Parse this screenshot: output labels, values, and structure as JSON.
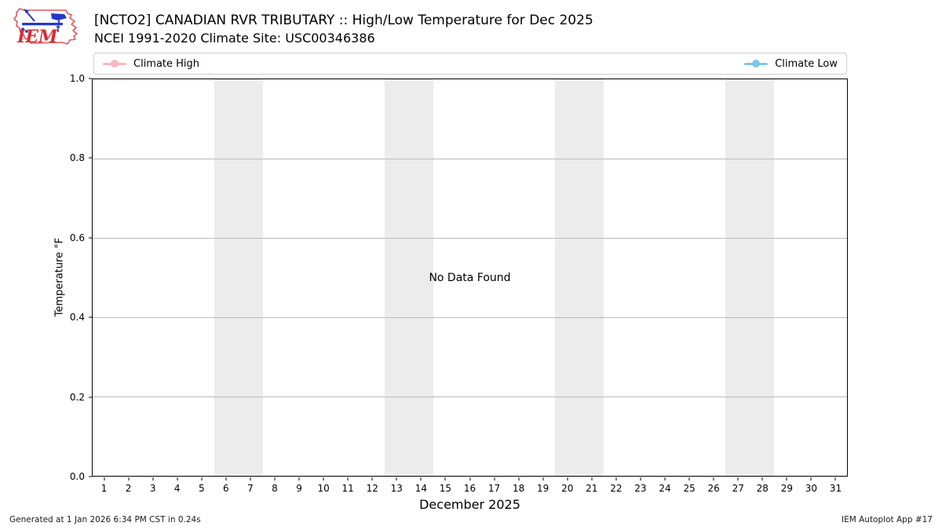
{
  "header": {
    "title": "[NCTO2] CANADIAN RVR TRIBUTARY :: High/Low Temperature for Dec 2025",
    "subtitle": "NCEI 1991-2020 Climate Site: USC00346386",
    "logo_text": "IEM"
  },
  "legend": {
    "items": [
      {
        "label": "Climate High",
        "color": "#f8b5c2",
        "marker": "circle-on-line"
      },
      {
        "label": "Climate Low",
        "color": "#7fc7e6",
        "marker": "circle-on-line"
      }
    ]
  },
  "chart_data": {
    "type": "line",
    "title": "[NCTO2] CANADIAN RVR TRIBUTARY :: High/Low Temperature for Dec 2025",
    "subtitle": "NCEI 1991-2020 Climate Site: USC00346386",
    "xlabel": "December 2025",
    "ylabel": "Temperature °F",
    "no_data_text": "No Data Found",
    "xlim": [
      0.5,
      31.5
    ],
    "ylim": [
      0.0,
      1.0
    ],
    "xticks": [
      1,
      2,
      3,
      4,
      5,
      6,
      7,
      8,
      9,
      10,
      11,
      12,
      13,
      14,
      15,
      16,
      17,
      18,
      19,
      20,
      21,
      22,
      23,
      24,
      25,
      26,
      27,
      28,
      29,
      30,
      31
    ],
    "yticks": [
      0.0,
      0.2,
      0.4,
      0.6,
      0.8,
      1.0
    ],
    "ytick_labels": [
      "0.0",
      "0.2",
      "0.4",
      "0.6",
      "0.8",
      "1.0"
    ],
    "series": [
      {
        "name": "Climate High",
        "color": "#f8b5c2",
        "x": [],
        "values": []
      },
      {
        "name": "Climate Low",
        "color": "#7fc7e6",
        "x": [],
        "values": []
      }
    ],
    "weekend_bands": [
      [
        5.5,
        7.5
      ],
      [
        12.5,
        14.5
      ],
      [
        19.5,
        21.5
      ],
      [
        26.5,
        28.5
      ]
    ],
    "band_color": "#ececec",
    "grid_color": "#bbbbbb",
    "grid": "horizontal-only",
    "legend_position": "top-inside-row"
  },
  "footer": {
    "left": "Generated at 1 Jan 2026 6:34 PM CST in 0.24s",
    "right": "IEM Autoplot App #17"
  }
}
